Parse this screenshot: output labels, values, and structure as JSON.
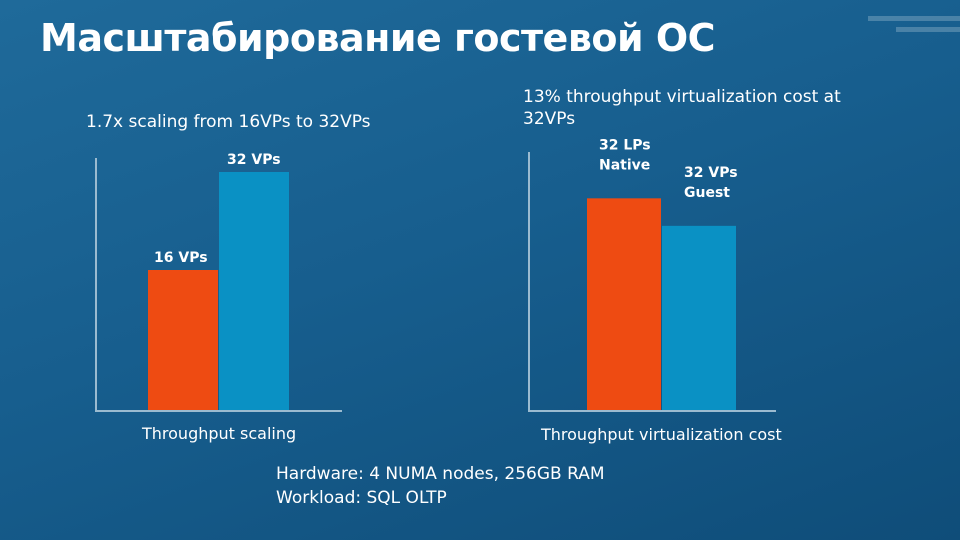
{
  "slide": {
    "title": "Масштабирование гостевой ОС",
    "left_subtitle": "1.7x scaling from 16VPs to 32VPs",
    "right_subtitle_line1": "13% throughput virtualization cost at",
    "right_subtitle_line2": "32VPs",
    "footer_line1": "Hardware: 4 NUMA nodes, 256GB RAM",
    "footer_line2": "Workload: SQL OLTP"
  },
  "chart_data": [
    {
      "type": "bar",
      "xlabel": "Throughput scaling",
      "ylabel": "",
      "categories": [
        "16 VPs",
        "32 VPs"
      ],
      "values": [
        1.0,
        1.7
      ],
      "colors": [
        "#ee4b12",
        "#0a91c4"
      ],
      "ylim": [
        0,
        2.0
      ],
      "grid": false
    },
    {
      "type": "bar",
      "xlabel": "Throughput virtualization cost",
      "ylabel": "",
      "categories": [
        "32 LPs Native",
        "32 VPs Guest"
      ],
      "category_lines": [
        [
          "32 LPs",
          "Native"
        ],
        [
          "32 VPs",
          "Guest"
        ]
      ],
      "values": [
        100,
        87
      ],
      "colors": [
        "#ee4b12",
        "#0a91c4"
      ],
      "ylim": [
        0,
        120
      ],
      "grid": false
    }
  ]
}
